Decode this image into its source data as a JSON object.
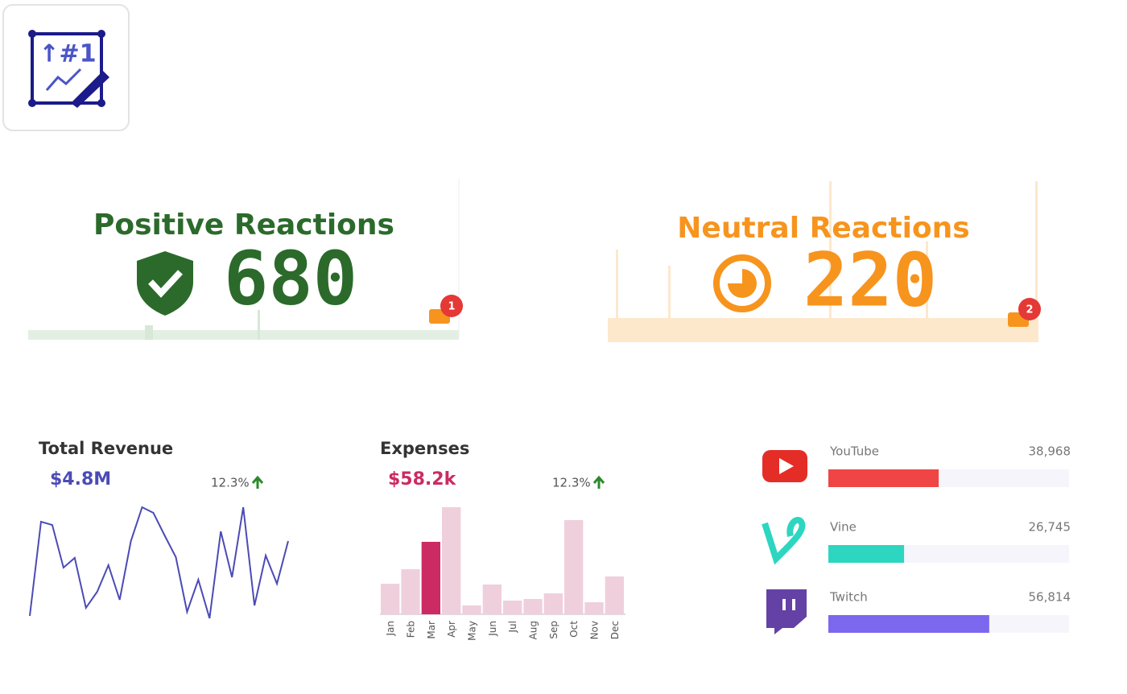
{
  "kpis": [
    {
      "title": "Positive Reactions",
      "value": 680,
      "badge": "1",
      "color": "#2b6a2b"
    },
    {
      "title": "Neutral Reactions",
      "value": 220,
      "badge": "2",
      "color": "#f7941d"
    }
  ],
  "chart_data": [
    {
      "type": "line",
      "title": "Total Revenue",
      "kpi": "$4.8M",
      "change": "12.3%",
      "color": "#4b4bb5",
      "values": [
        5,
        122,
        118,
        65,
        77,
        15,
        35,
        68,
        25,
        98,
        140,
        133,
        105,
        78,
        10,
        50,
        2,
        110,
        53,
        140,
        18,
        80,
        45,
        98
      ],
      "ylim": [
        0,
        140
      ]
    },
    {
      "type": "bar",
      "title": "Expenses",
      "kpi": "$58.2k",
      "change": "12.3%",
      "categories": [
        "Jan",
        "Feb",
        "Mar",
        "Apr",
        "May",
        "Jun",
        "Jul",
        "Aug",
        "Sep",
        "Oct",
        "Nov",
        "Dec"
      ],
      "values": [
        38,
        56,
        90,
        133,
        11,
        37,
        17,
        19,
        26,
        117,
        15,
        47
      ],
      "colors": [
        "#f0cfdc",
        "#f0cfdc",
        "#cc2a63",
        "#f0cfdc",
        "#f0cfdc",
        "#f0cfdc",
        "#f0cfdc",
        "#f0cfdc",
        "#f0cfdc",
        "#f0cfdc",
        "#f0cfdc",
        "#f0cfdc"
      ],
      "ylim": [
        0,
        133
      ]
    },
    {
      "type": "hbar",
      "categories": [
        "YouTube",
        "Vine",
        "Twitch"
      ],
      "values": [
        38968,
        26745,
        56814
      ],
      "value_labels": [
        "38,968",
        "26,745",
        "56,814"
      ],
      "colors": [
        "#f04545",
        "#2dd6c1",
        "#7b68ee"
      ],
      "xlim": [
        0,
        85000
      ]
    }
  ]
}
